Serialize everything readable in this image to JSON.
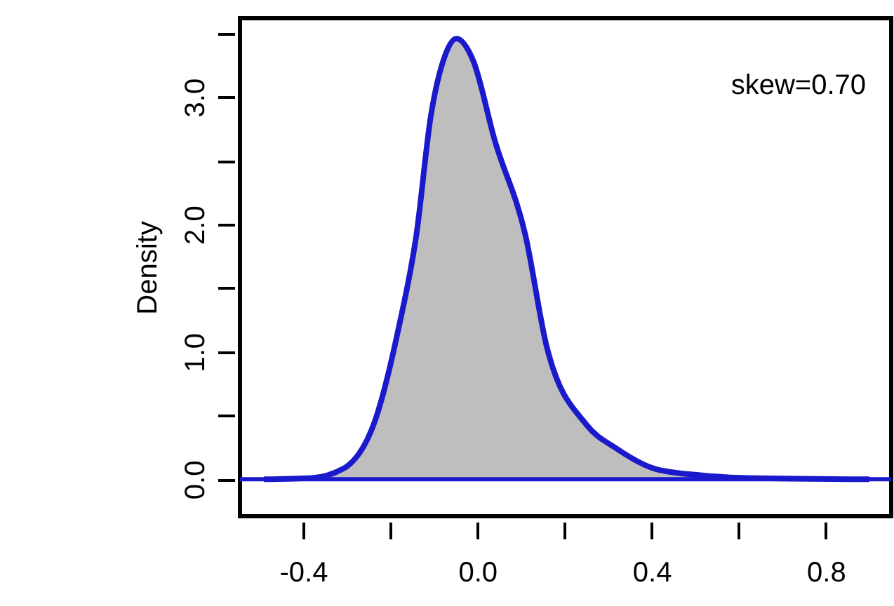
{
  "chart_data": {
    "type": "area",
    "ylabel": "Density",
    "annotations": [
      "skew=0.70"
    ],
    "x": [
      -0.49,
      -0.38,
      -0.31,
      -0.3,
      -0.235,
      -0.18,
      -0.14,
      -0.107,
      -0.075,
      -0.048,
      -0.01,
      0.04,
      0.11,
      0.16,
      0.25,
      0.32,
      0.41,
      0.52,
      0.62,
      0.9
    ],
    "series": [
      {
        "color": "#1a1acc",
        "values": [
          0,
          0.01,
          0.08,
          0.1,
          0.46,
          1.2,
          1.92,
          2.85,
          3.32,
          3.46,
          3.29,
          2.66,
          1.92,
          1.03,
          0.43,
          0.24,
          0.08,
          0.03,
          0.01,
          0
        ]
      }
    ],
    "ref_lines": [
      {
        "axis": "y",
        "value": 0,
        "color": "#1a1acc"
      }
    ],
    "xlim": [
      -0.545,
      0.95
    ],
    "ylim": [
      -0.29,
      3.62
    ],
    "xticks": [
      -0.4,
      {
        "value": -0.2,
        "label": null
      },
      {
        "value": 0,
        "label": "0.0"
      },
      {
        "value": 0.2,
        "label": null
      },
      0.4,
      {
        "value": 0.6,
        "label": null
      },
      0.8
    ],
    "yticks": [
      {
        "value": 0,
        "label": "0.0"
      },
      {
        "value": 0.5,
        "label": null
      },
      {
        "value": 1,
        "label": "1.0"
      },
      {
        "value": 1.5,
        "label": null
      },
      {
        "value": 2,
        "label": "2.0"
      },
      {
        "value": 2.5,
        "label": null
      },
      {
        "value": 3,
        "label": "3.0"
      },
      {
        "value": 3.5,
        "label": null
      }
    ],
    "grid": false
  }
}
